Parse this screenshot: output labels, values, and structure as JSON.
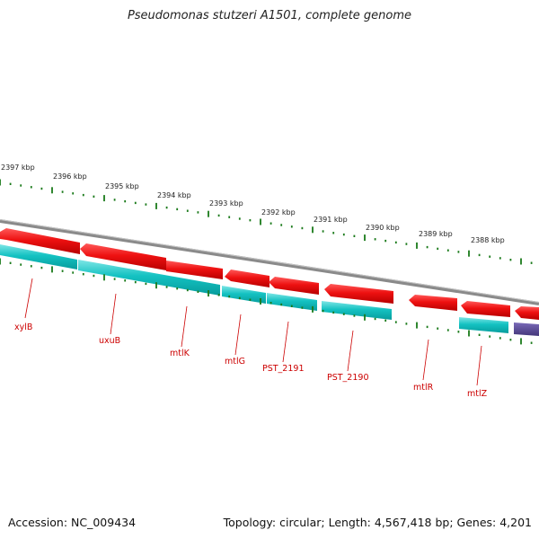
{
  "title": "Pseudomonas stutzeri A1501, complete genome",
  "footer": {
    "accession": "Accession: NC_009434",
    "summary": "Topology: circular; Length: 4,567,418 bp; Genes: 4,201"
  },
  "colors": {
    "backbone": "#8a8a8a",
    "forward_cds": "#ee1111",
    "reverse_cds": "#11c4c4",
    "other_feature": "#5b4a9a",
    "ticks": "#1a7a1a",
    "gene_label": "#cc0000"
  },
  "kbp_labels": [
    "2397 kbp",
    "2396 kbp",
    "2395 kbp",
    "2394 kbp",
    "2393 kbp",
    "2392 kbp",
    "2391 kbp",
    "2390 kbp",
    "2389 kbp",
    "2388 kbp"
  ],
  "genes": [
    {
      "name": "xylB",
      "strand": "reverse"
    },
    {
      "name": "uxuB",
      "strand": "reverse"
    },
    {
      "name": "mtlK",
      "strand": "reverse"
    },
    {
      "name": "mtlG",
      "strand": "reverse"
    },
    {
      "name": "PST_2191",
      "strand": "reverse"
    },
    {
      "name": "PST_2190",
      "strand": "reverse"
    },
    {
      "name": "mtlR",
      "strand": "forward"
    },
    {
      "name": "mtlZ",
      "strand": "reverse"
    }
  ]
}
